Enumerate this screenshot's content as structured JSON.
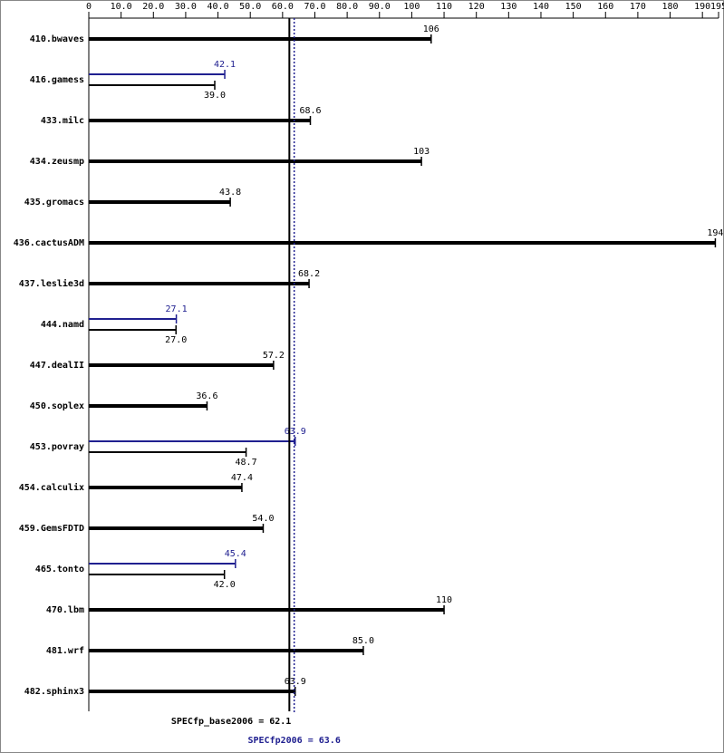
{
  "chart_data": {
    "type": "bar",
    "categories": [
      "410.bwaves",
      "416.gamess",
      "433.milc",
      "434.zeusmp",
      "435.gromacs",
      "436.cactusADM",
      "437.leslie3d",
      "444.namd",
      "447.dealII",
      "450.soplex",
      "453.povray",
      "454.calculix",
      "459.GemsFDTD",
      "465.tonto",
      "470.lbm",
      "481.wrf",
      "482.sphinx3"
    ],
    "series": [
      {
        "color": "#000000",
        "values": [
          106,
          39,
          68.6,
          103,
          43.8,
          194,
          68.2,
          27,
          57.2,
          36.6,
          48.7,
          47.4,
          54,
          42,
          110,
          85,
          63.9
        ],
        "value_labels": [
          "106",
          "39.0",
          "68.6",
          "103",
          "43.8",
          "194",
          "68.2",
          "27.0",
          "57.2",
          "36.6",
          "48.7",
          "47.4",
          "54.0",
          "42.0",
          "110",
          "85.0",
          "63.9"
        ]
      },
      {
        "color": "#202090",
        "values": [
          null,
          42.1,
          null,
          null,
          null,
          null,
          null,
          27.1,
          null,
          null,
          63.9,
          null,
          null,
          45.4,
          null,
          null,
          null
        ],
        "value_labels": [
          null,
          "42.1",
          null,
          null,
          null,
          null,
          null,
          "27.1",
          null,
          null,
          "63.9",
          null,
          null,
          "45.4",
          null,
          null,
          null
        ]
      }
    ],
    "xlim": [
      0,
      195
    ],
    "xticks": [
      0,
      {
        "value": 10,
        "label": "10.0"
      },
      {
        "value": 20,
        "label": "20.0"
      },
      {
        "value": 30,
        "label": "30.0"
      },
      {
        "value": 40,
        "label": "40.0"
      },
      {
        "value": 50,
        "label": "50.0"
      },
      {
        "value": 60,
        "label": "60.0"
      },
      {
        "value": 70,
        "label": "70.0"
      },
      {
        "value": 80,
        "label": "80.0"
      },
      {
        "value": 90,
        "label": "90.0"
      },
      100,
      110,
      120,
      130,
      140,
      150,
      160,
      170,
      180,
      190,
      195
    ],
    "reference_lines": [
      {
        "value": 62.1,
        "label": "SPECfp_base2006 = 62.1",
        "color": "#000000",
        "style": "solid"
      },
      {
        "value": 63.6,
        "label": "SPECfp2006 = 63.6",
        "color": "#202090",
        "style": "dotted"
      }
    ]
  }
}
